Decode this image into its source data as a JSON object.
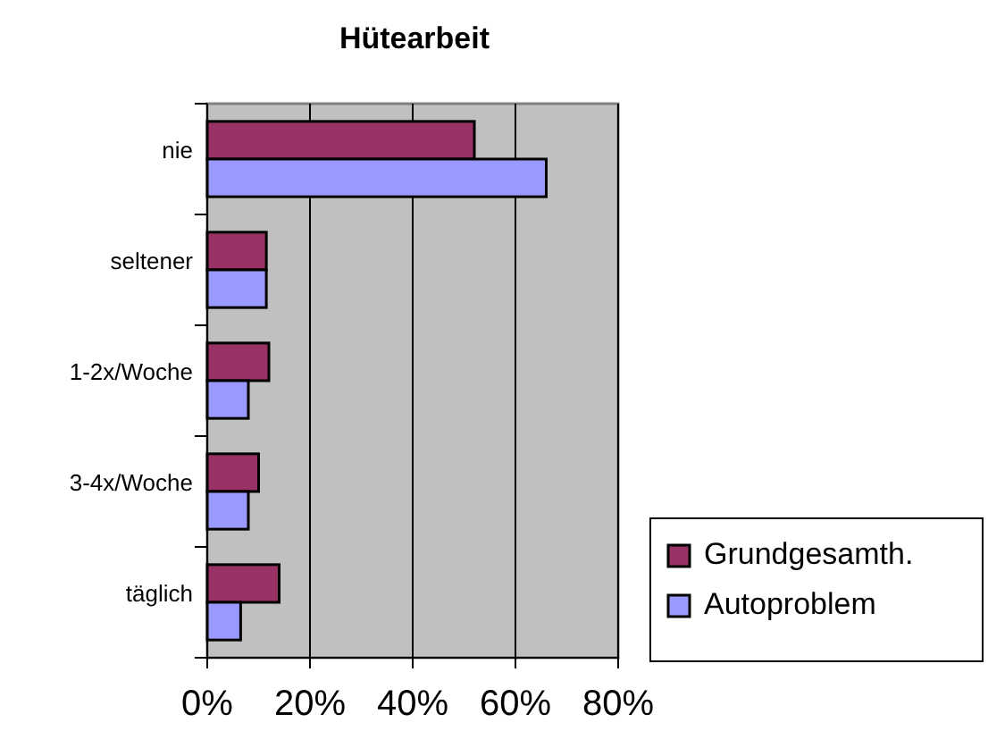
{
  "chart_data": {
    "type": "bar",
    "title": "Hütearbeit",
    "orientation": "horizontal",
    "categories": [
      "nie",
      "seltener",
      "1-2x/Woche",
      "3-4x/Woche",
      "täglich"
    ],
    "series": [
      {
        "name": "Grundgesamth.",
        "color": "#993366",
        "values": [
          52,
          11.5,
          12,
          10,
          14
        ]
      },
      {
        "name": "Autoproblem",
        "color": "#9999ff",
        "values": [
          66,
          11.5,
          8,
          8,
          6.5
        ]
      }
    ],
    "xlim": [
      0,
      80
    ],
    "xticks": [
      {
        "value": 0,
        "label": "0%"
      },
      {
        "value": 20,
        "label": "20%"
      },
      {
        "value": 40,
        "label": "40%"
      },
      {
        "value": 60,
        "label": "60%"
      },
      {
        "value": 80,
        "label": "80%"
      }
    ],
    "grid": "x",
    "legend": "bottom right"
  }
}
